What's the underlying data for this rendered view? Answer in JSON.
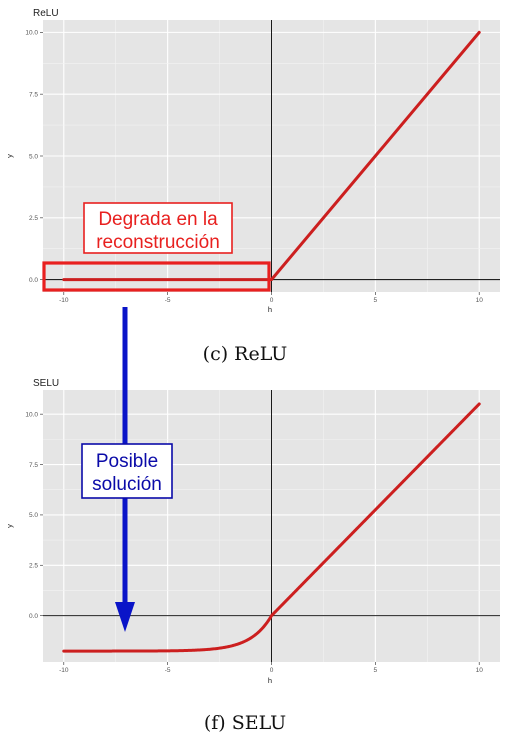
{
  "chart_data": [
    {
      "type": "line",
      "title": "ReLU",
      "caption": "(c) ReLU",
      "xlabel": "h",
      "ylabel": "y",
      "xlim": [
        -11,
        11
      ],
      "ylim": [
        -0.5,
        10.5
      ],
      "xticks": [
        -10,
        -5,
        0,
        5,
        10
      ],
      "xtick_labels": [
        "-10",
        "-5",
        "0",
        "5",
        "10"
      ],
      "yticks": [
        0,
        2.5,
        5,
        7.5,
        10
      ],
      "ytick_labels": [
        "0.0",
        "2.5",
        "5.0",
        "7.5",
        "10.0"
      ],
      "grid": true,
      "series": [
        {
          "x": [
            -10,
            -5,
            0,
            5,
            10
          ],
          "y": [
            0,
            0,
            0,
            5,
            10
          ],
          "color": "#cc1f1f"
        }
      ],
      "annotation": {
        "lines": [
          "Degrada en la",
          "reconstrucción"
        ],
        "color": "#e8201f",
        "box_color": "#e8201f"
      }
    },
    {
      "type": "line",
      "title": "SELU",
      "caption": "(f) SELU",
      "xlabel": "h",
      "ylabel": "y",
      "xlim": [
        -11,
        11
      ],
      "ylim": [
        -2.3,
        11.2
      ],
      "xticks": [
        -10,
        -5,
        0,
        5,
        10
      ],
      "xtick_labels": [
        "-10",
        "-5",
        "0",
        "5",
        "10"
      ],
      "yticks": [
        0,
        2.5,
        5,
        7.5,
        10
      ],
      "ytick_labels": [
        "0.0",
        "2.5",
        "5.0",
        "7.5",
        "10.0"
      ],
      "grid": true,
      "series": [
        {
          "function": "selu",
          "x_range": [
            -10,
            10
          ],
          "color": "#cc1f1f"
        }
      ],
      "annotation": {
        "lines": [
          "Posible",
          "solución"
        ],
        "color": "#0a0aa8",
        "box_color": "#0a0aa8"
      }
    }
  ],
  "arrow_color": "#0a14c8"
}
